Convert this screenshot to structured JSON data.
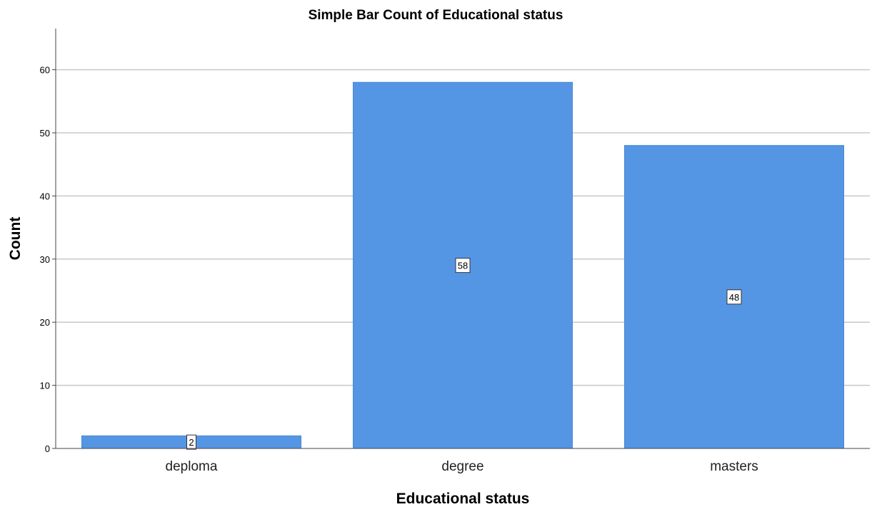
{
  "chart_data": {
    "type": "bar",
    "title": "Simple Bar Count of Educational status",
    "xlabel": "Educational status",
    "ylabel": "Count",
    "categories": [
      "deploma",
      "degree",
      "masters"
    ],
    "values": [
      2,
      58,
      48
    ],
    "data_labels": [
      "2",
      "58",
      "48"
    ],
    "yticks": [
      "0",
      "10",
      "20",
      "30",
      "40",
      "50",
      "60"
    ],
    "ylim": [
      0,
      66
    ],
    "grid": true,
    "legend": "none",
    "bar_color": "#5596e4",
    "grid_color": "#c8c8c8"
  }
}
